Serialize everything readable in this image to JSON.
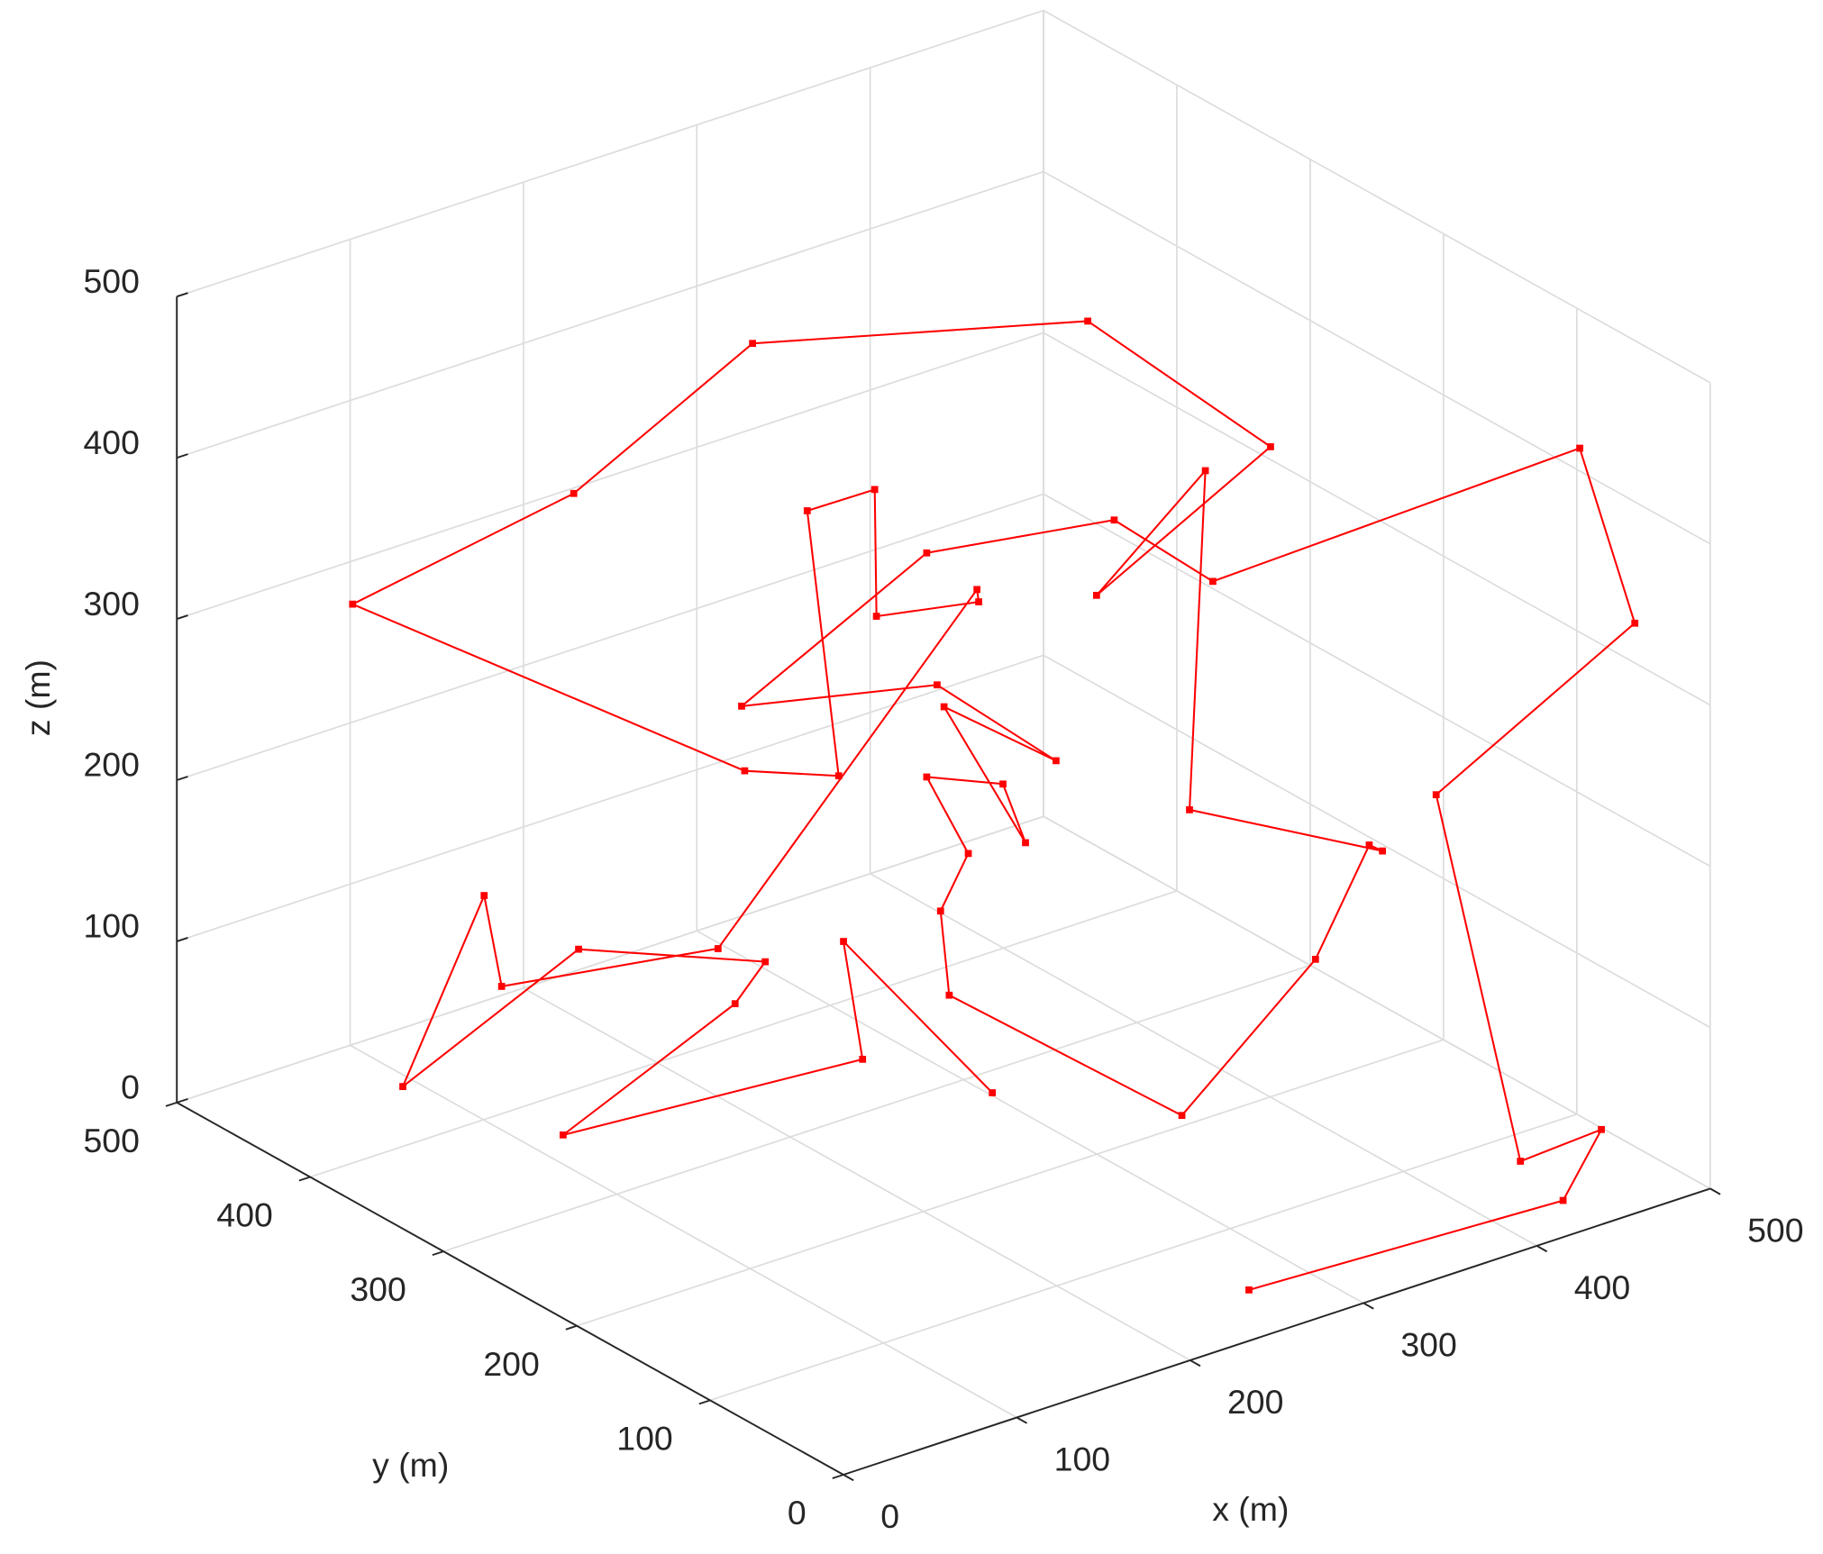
{
  "chart_data": {
    "type": "line3d",
    "xlabel": "x (m)",
    "ylabel": "y (m)",
    "zlabel": "z (m)",
    "color": "#ff0000",
    "marker": "square",
    "grid": true,
    "xlim": [
      0,
      500
    ],
    "ylim": [
      0,
      500
    ],
    "zlim": [
      0,
      500
    ],
    "xticks": [
      0,
      100,
      200,
      300,
      400,
      500
    ],
    "yticks": [
      0,
      100,
      200,
      300,
      400,
      500
    ],
    "zticks": [
      0,
      100,
      200,
      300,
      400,
      500
    ],
    "x": [
      267,
      439,
      478,
      449,
      445,
      485,
      474,
      400,
      380,
      298,
      212,
      304,
      368,
      308,
      355,
      342,
      298,
      322,
      306,
      311,
      356,
      420,
      431,
      434,
      395,
      398,
      376,
      411,
      374,
      216,
      149,
      66,
      213,
      248,
      236,
      268,
      269,
      328,
      327,
      203,
      122,
      115,
      85,
      151,
      221,
      209,
      119,
      261,
      250,
      302
    ],
    "y": [
      43,
      31,
      53,
      76,
      134,
      37,
      64,
      243,
      291,
      325,
      352,
      325,
      319,
      325,
      325,
      325,
      325,
      325,
      325,
      325,
      209,
      192,
      166,
      160,
      254,
      246,
      299,
      214,
      303,
      349,
      396,
      454,
      351,
      326,
      334,
      325,
      325,
      325,
      325,
      358,
      415,
      419,
      441,
      395,
      346,
      353,
      365,
      325,
      325,
      281
    ],
    "z": [
      0,
      0,
      20,
      0,
      202,
      339,
      439,
      300,
      323,
      316,
      239,
      232,
      165,
      217,
      116,
      157,
      177,
      121,
      91,
      37,
      0,
      82,
      161,
      159,
      155,
      368,
      274,
      393,
      443,
      464,
      373,
      307,
      199,
      195,
      360,
      366,
      287,
      275,
      283,
      89,
      68,
      125,
      7,
      90,
      80,
      55,
      0,
      15,
      92,
      0
    ]
  }
}
